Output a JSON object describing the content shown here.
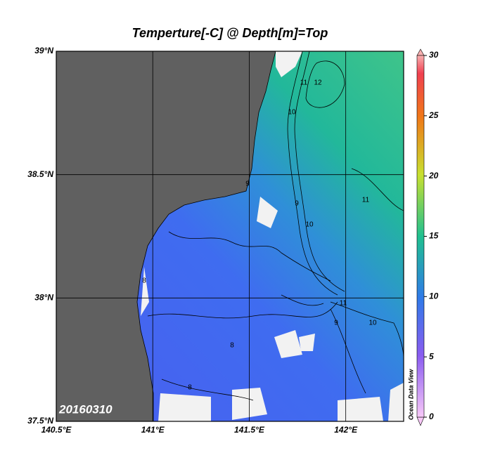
{
  "map": {
    "title": "Temperture[-C] @ Depth[m]=Top",
    "date": "20160310",
    "watermark": "Ocean Data View",
    "xlim": [
      140.5,
      142.3
    ],
    "ylim": [
      37.5,
      39
    ],
    "xticks": [
      {
        "value": 140.5,
        "label": "140.5°E"
      },
      {
        "value": 141,
        "label": "141°E"
      },
      {
        "value": 141.5,
        "label": "141.5°E"
      },
      {
        "value": 142,
        "label": "142°E"
      }
    ],
    "yticks": [
      {
        "value": 37.5,
        "label": "37.5°N"
      },
      {
        "value": 38,
        "label": "38°N"
      },
      {
        "value": 38.5,
        "label": "38.5°N"
      },
      {
        "value": 39,
        "label": "39°N"
      }
    ],
    "colorbar": {
      "lim": [
        0,
        30
      ],
      "ticks": [
        0,
        5,
        10,
        15,
        20,
        25,
        30
      ]
    },
    "contour_labels": [
      8,
      9,
      10,
      11,
      12
    ]
  }
}
